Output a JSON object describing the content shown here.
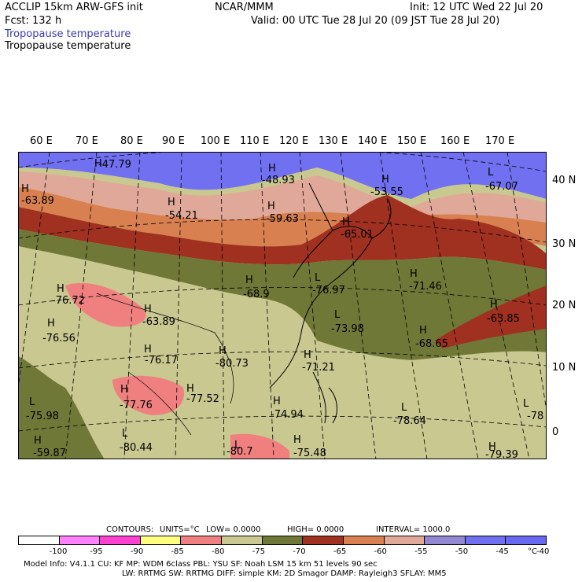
{
  "header": {
    "model": "ACCLIP 15km ARW-GFS init",
    "org": "NCAR/MMM",
    "init": "Init: 12 UTC Wed 22 Jul 20",
    "fcst": "Fcst:  132 h",
    "valid": "Valid: 00 UTC Tue 28 Jul 20 (09 JST Tue 28 Jul 20)",
    "field_colored": "Tropopause temperature",
    "field_contour": "Tropopause temperature"
  },
  "lon_labels": [
    "60 E",
    "70 E",
    "80 E",
    "90 E",
    "100 E",
    "110 E",
    "120 E",
    "130 E",
    "140 E",
    "150 E",
    "160 E",
    "170 E"
  ],
  "lat_labels": [
    "40 N",
    "30 N",
    "20 N",
    "10 N",
    "0"
  ],
  "map_labels": [
    {
      "hl": "H",
      "val": "-47.79"
    },
    {
      "hl": "H",
      "val": "-48.93"
    },
    {
      "hl": "H",
      "val": "-53.55"
    },
    {
      "hl": "L",
      "val": "-67.07"
    },
    {
      "hl": "H",
      "val": "-63.89"
    },
    {
      "hl": "H",
      "val": "-54.21"
    },
    {
      "hl": "H",
      "val": "-59.63"
    },
    {
      "hl": "H",
      "val": "-65.01"
    },
    {
      "hl": "H",
      "val": "-68.9"
    },
    {
      "hl": "L",
      "val": "-76.97"
    },
    {
      "hl": "H",
      "val": "-71.46"
    },
    {
      "hl": "H",
      "val": "-76.72"
    },
    {
      "hl": "H",
      "val": "-63.85"
    },
    {
      "hl": "H",
      "val": "-63.89"
    },
    {
      "hl": "H",
      "val": "-76.56"
    },
    {
      "hl": "L",
      "val": "-73.98"
    },
    {
      "hl": "H",
      "val": "-68.65"
    },
    {
      "hl": "H",
      "val": "-76.17"
    },
    {
      "hl": "H",
      "val": "-80.73"
    },
    {
      "hl": "H",
      "val": "-71.21"
    },
    {
      "hl": "H",
      "val": "-77.76"
    },
    {
      "hl": "H",
      "val": "-77.52"
    },
    {
      "hl": "L",
      "val": "-75.98"
    },
    {
      "hl": "H",
      "val": "-74.94"
    },
    {
      "hl": "L",
      "val": "-78.64"
    },
    {
      "hl": "L",
      "val": "-78"
    },
    {
      "hl": "L",
      "val": "-80.44"
    },
    {
      "hl": "H",
      "val": "-59.87"
    },
    {
      "hl": "L",
      "val": "-80.7"
    },
    {
      "hl": "H",
      "val": "-75.48"
    },
    {
      "hl": "H",
      "val": "-79.39"
    }
  ],
  "contour_info": {
    "contours": "CONTOURS:",
    "units": "UNITS=°C",
    "low": "LOW=  0.0000",
    "high": "HIGH=  0.0000",
    "interval": "INTERVAL=  1000.0"
  },
  "colorbar": {
    "colors": [
      "#ffffff",
      "#ff80ff",
      "#ff40d0",
      "#ffff80",
      "#f08080",
      "#c8c890",
      "#707838",
      "#a03020",
      "#d88050",
      "#e0a898",
      "#9088d0",
      "#7070f0",
      "#6868f0"
    ],
    "labels": [
      "-100",
      "-95",
      "-90",
      "-85",
      "-80",
      "-75",
      "-70",
      "-65",
      "-60",
      "-55",
      "-50",
      "-45",
      "-40"
    ],
    "unit": "°C"
  },
  "footer": {
    "line1": "Model Info: V4.1.1     CU: KF        MP: WDM 6class   PBL: YSU        SF: Noah LSM     15 km    51 levels    90 sec",
    "line2": "LW: RRTMG     SW: RRTMG   DIFF: simple KM: 2D Smagor DAMP: Rayleigh3  SFLAY: MM5"
  }
}
